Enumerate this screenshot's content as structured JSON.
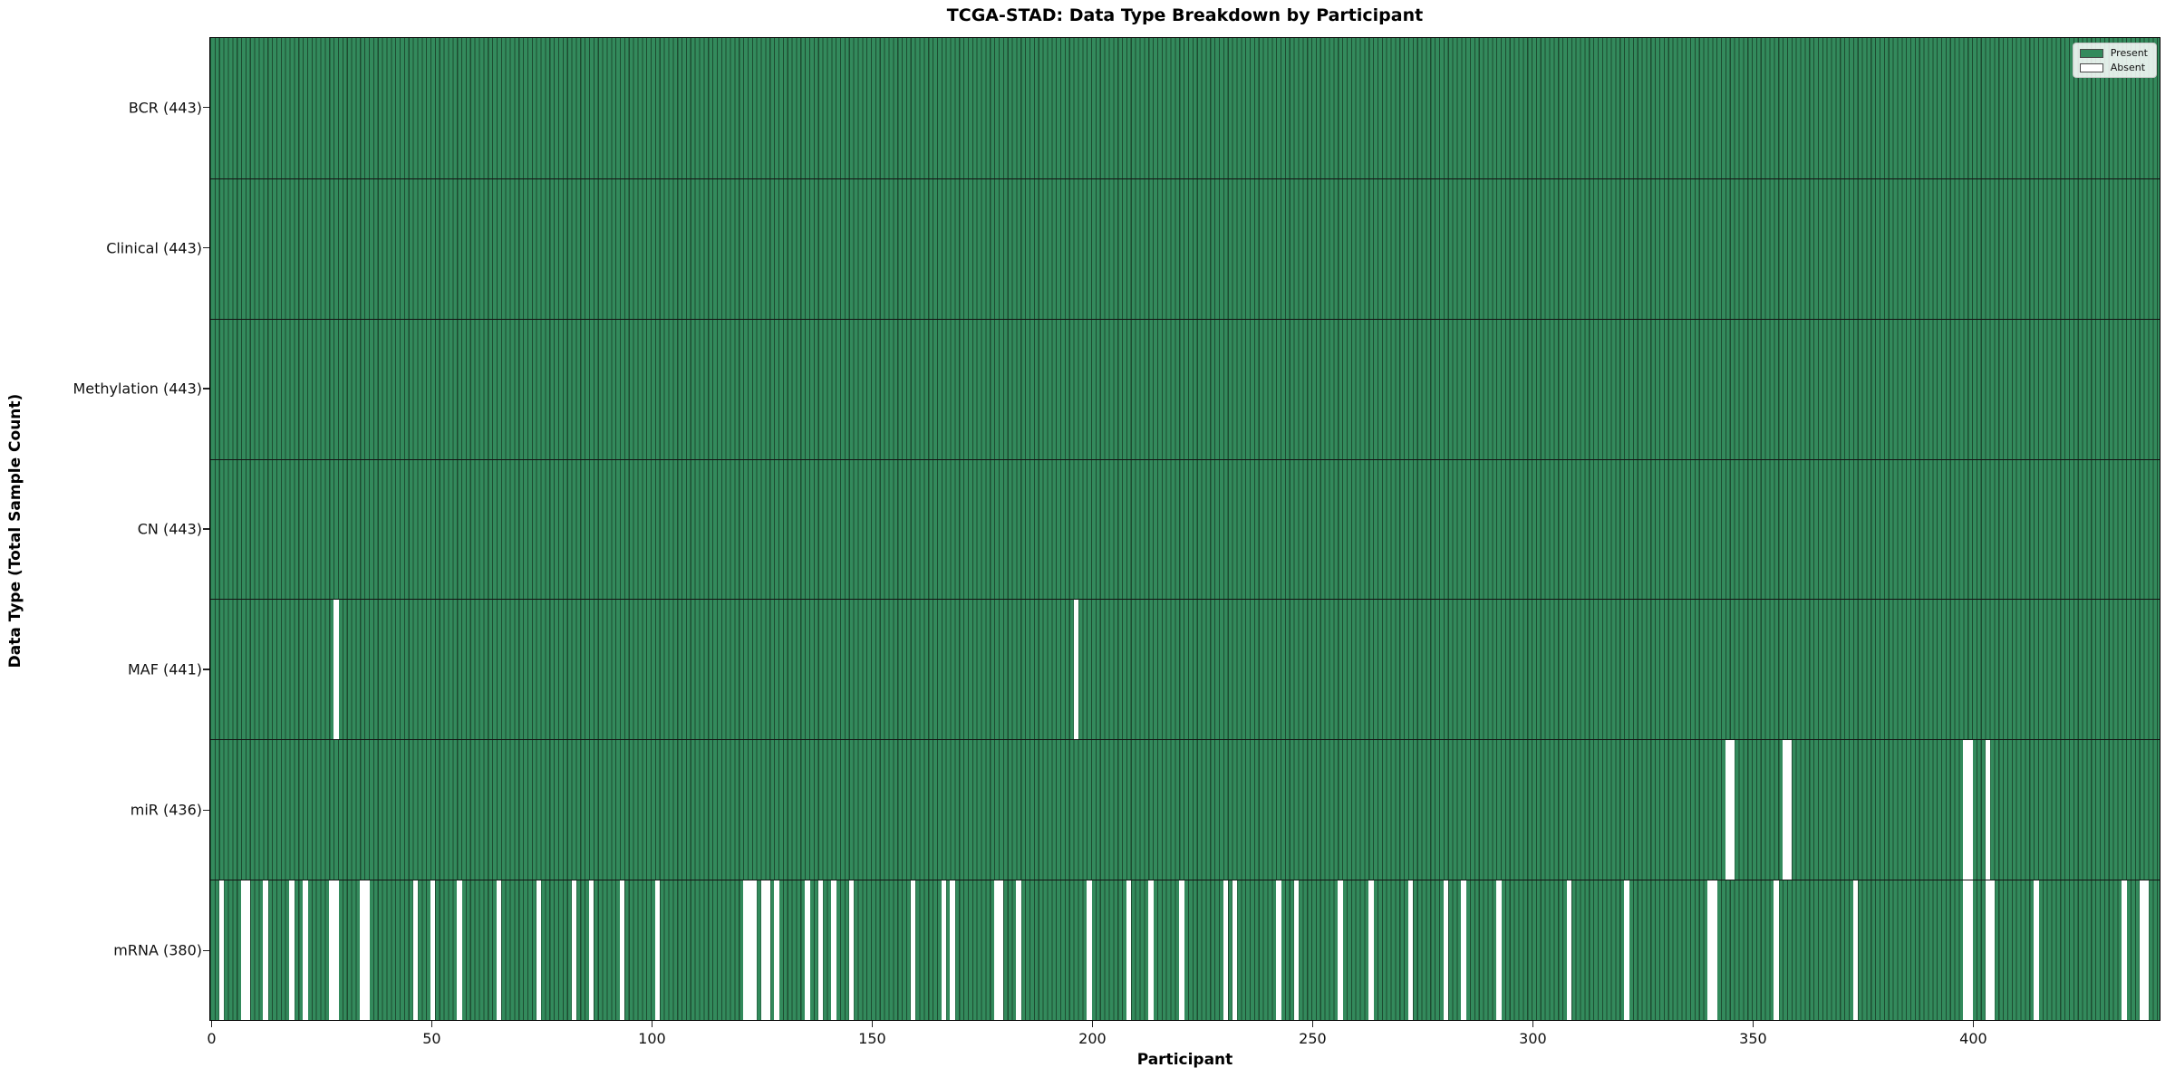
{
  "figure": {
    "title": "TCGA-STAD: Data Type Breakdown by Participant",
    "xlabel": "Participant",
    "ylabel": "Data Type (Total Sample Count)"
  },
  "legend": {
    "present_label": "Present",
    "absent_label": "Absent"
  },
  "chart_data": {
    "type": "heatmap",
    "title": "TCGA-STAD: Data Type Breakdown by Participant",
    "xlabel": "Participant",
    "ylabel": "Data Type (Total Sample Count)",
    "n_participants": 443,
    "x_ticks": [
      0,
      50,
      100,
      150,
      200,
      250,
      300,
      350,
      400
    ],
    "xlim": [
      -0.5,
      442.5
    ],
    "grid": false,
    "legend_entries": [
      "Present",
      "Absent"
    ],
    "legend_position": "upper-right",
    "colors": {
      "present_fill": "#338a5c",
      "bar_edge": "#1d4c31",
      "absent": "#ffffff",
      "row_separator": "#141414"
    },
    "rows": [
      {
        "name": "BCR",
        "total": 443,
        "label": "BCR (443)",
        "absent_participants": []
      },
      {
        "name": "Clinical",
        "total": 443,
        "label": "Clinical (443)",
        "absent_participants": []
      },
      {
        "name": "Methylation",
        "total": 443,
        "label": "Methylation (443)",
        "absent_participants": []
      },
      {
        "name": "CN",
        "total": 443,
        "label": "CN (443)",
        "absent_participants": []
      },
      {
        "name": "MAF",
        "total": 441,
        "label": "MAF (441)",
        "absent_participants": [
          28,
          196
        ]
      },
      {
        "name": "miR",
        "total": 436,
        "label": "miR (436)",
        "absent_participants": [
          344,
          345,
          357,
          358,
          398,
          399,
          403
        ]
      },
      {
        "name": "mRNA",
        "total": 380,
        "label": "mRNA (380)",
        "absent_participants": [
          2,
          7,
          8,
          12,
          18,
          21,
          27,
          28,
          34,
          35,
          46,
          50,
          56,
          65,
          74,
          82,
          86,
          93,
          101,
          121,
          122,
          123,
          125,
          126,
          128,
          135,
          138,
          141,
          145,
          159,
          166,
          168,
          178,
          179,
          183,
          199,
          208,
          213,
          220,
          230,
          232,
          242,
          246,
          256,
          263,
          272,
          280,
          284,
          292,
          308,
          321,
          340,
          341,
          355,
          373,
          398,
          399,
          403,
          404,
          414,
          434,
          438,
          439
        ]
      }
    ]
  }
}
